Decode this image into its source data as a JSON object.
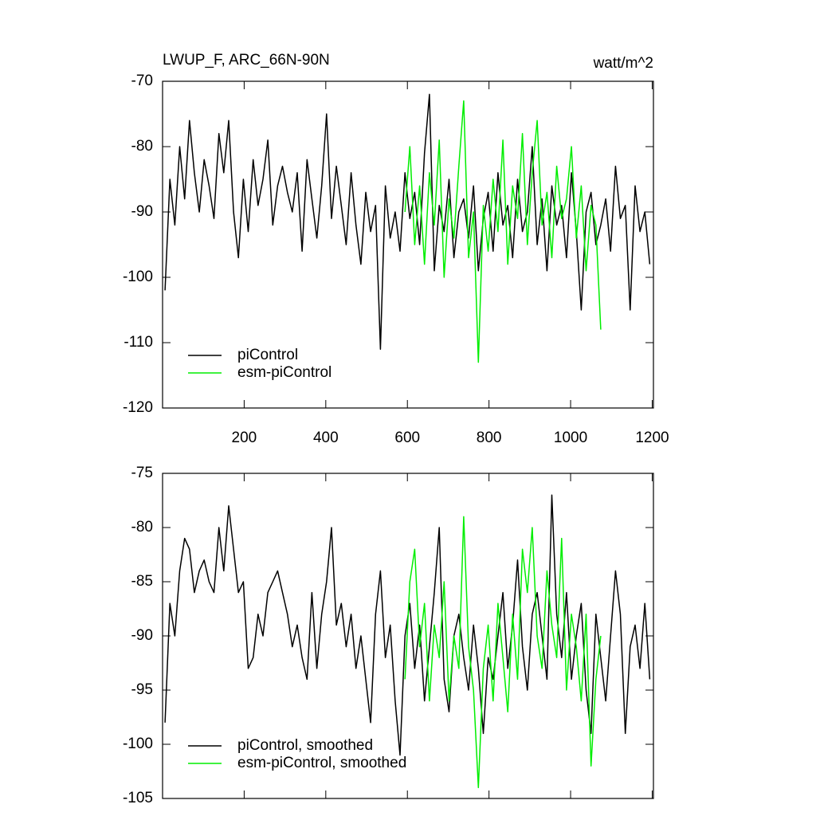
{
  "chart_data": [
    {
      "type": "line",
      "title": "LWUP_F, ARC_66N-90N",
      "units_label": "watt/m^2",
      "x": [
        6,
        18,
        30,
        42,
        54,
        66,
        78,
        90,
        102,
        114,
        126,
        138,
        150,
        162,
        174,
        186,
        198,
        210,
        222,
        234,
        246,
        258,
        270,
        282,
        294,
        306,
        318,
        330,
        342,
        354,
        366,
        378,
        390,
        402,
        414,
        426,
        438,
        450,
        462,
        474,
        486,
        498,
        510,
        522,
        534,
        546,
        558,
        570,
        582,
        594,
        606,
        618,
        630,
        642,
        654,
        666,
        678,
        690,
        702,
        714,
        726,
        738,
        750,
        762,
        774,
        786,
        798,
        810,
        822,
        834,
        846,
        858,
        870,
        882,
        894,
        906,
        918,
        930,
        942,
        954,
        966,
        978,
        990,
        1002,
        1014,
        1026,
        1038,
        1050,
        1062,
        1074,
        1086,
        1098,
        1110,
        1122,
        1134,
        1146,
        1158,
        1170,
        1182,
        1194
      ],
      "series": [
        {
          "name": "piControl",
          "color": "#000000",
          "values": [
            -102,
            -85,
            -92,
            -80,
            -88,
            -76,
            -84,
            -90,
            -82,
            -86,
            -91,
            -78,
            -84,
            -76,
            -90,
            -97,
            -85,
            -93,
            -82,
            -89,
            -85,
            -79,
            -92,
            -86,
            -83,
            -87,
            -90,
            -84,
            -96,
            -82,
            -88,
            -94,
            -86,
            -75,
            -91,
            -83,
            -89,
            -95,
            -84,
            -92,
            -98,
            -87,
            -93,
            -89,
            -111,
            -86,
            -94,
            -90,
            -96,
            -84,
            -91,
            -87,
            -95,
            -81,
            -72,
            -99,
            -89,
            -93,
            -85,
            -97,
            -90,
            -88,
            -94,
            -86,
            -99,
            -91,
            -87,
            -96,
            -84,
            -92,
            -89,
            -97,
            -85,
            -93,
            -90,
            -80,
            -95,
            -88,
            -99,
            -86,
            -92,
            -89,
            -97,
            -84,
            -93,
            -105,
            -90,
            -87,
            -95,
            -92,
            -88,
            -96,
            -83,
            -91,
            -89,
            -105,
            -86,
            -93,
            -90,
            -98
          ]
        },
        {
          "name": "esm-piControl",
          "color": "#00ee00",
          "values": [
            null,
            null,
            null,
            null,
            null,
            null,
            null,
            null,
            null,
            null,
            null,
            null,
            null,
            null,
            null,
            null,
            null,
            null,
            null,
            null,
            null,
            null,
            null,
            null,
            null,
            null,
            null,
            null,
            null,
            null,
            null,
            null,
            null,
            null,
            null,
            null,
            null,
            null,
            null,
            null,
            null,
            null,
            null,
            null,
            null,
            null,
            null,
            null,
            null,
            -90,
            -80,
            -95,
            -86,
            -98,
            -84,
            -92,
            -79,
            -100,
            -88,
            -94,
            -83,
            -73,
            -97,
            -90,
            -113,
            -89,
            -96,
            -85,
            -93,
            -79,
            -98,
            -86,
            -91,
            -78,
            -95,
            -84,
            -76,
            -92,
            -87,
            -97,
            -83,
            -91,
            -88,
            -80,
            -94,
            -86,
            -99,
            -89,
            -92,
            -108,
            null,
            null,
            null,
            null,
            null,
            null,
            null,
            null,
            null,
            null
          ]
        }
      ],
      "xlim": [
        0,
        1203
      ],
      "xticks": [
        200,
        400,
        600,
        800,
        1000,
        1200
      ],
      "xtick_labels": true,
      "ylim": [
        -120,
        -70
      ],
      "yticks": [
        -120,
        -110,
        -100,
        -90,
        -80,
        -70
      ],
      "legend": "lower left"
    },
    {
      "type": "line",
      "x": [
        6,
        18,
        30,
        42,
        54,
        66,
        78,
        90,
        102,
        114,
        126,
        138,
        150,
        162,
        174,
        186,
        198,
        210,
        222,
        234,
        246,
        258,
        270,
        282,
        294,
        306,
        318,
        330,
        342,
        354,
        366,
        378,
        390,
        402,
        414,
        426,
        438,
        450,
        462,
        474,
        486,
        498,
        510,
        522,
        534,
        546,
        558,
        570,
        582,
        594,
        606,
        618,
        630,
        642,
        654,
        666,
        678,
        690,
        702,
        714,
        726,
        738,
        750,
        762,
        774,
        786,
        798,
        810,
        822,
        834,
        846,
        858,
        870,
        882,
        894,
        906,
        918,
        930,
        942,
        954,
        966,
        978,
        990,
        1002,
        1014,
        1026,
        1038,
        1050,
        1062,
        1074,
        1086,
        1098,
        1110,
        1122,
        1134,
        1146,
        1158,
        1170,
        1182,
        1194
      ],
      "series": [
        {
          "name": "piControl, smoothed",
          "color": "#000000",
          "values": [
            -98,
            -87,
            -90,
            -84,
            -81,
            -82,
            -86,
            -84,
            -83,
            -85,
            -86,
            -80,
            -84,
            -78,
            -82,
            -86,
            -85,
            -93,
            -92,
            -88,
            -90,
            -86,
            -85,
            -84,
            -86,
            -88,
            -91,
            -89,
            -92,
            -94,
            -86,
            -93,
            -88,
            -85,
            -80,
            -89,
            -87,
            -91,
            -88,
            -93,
            -90,
            -94,
            -98,
            -88,
            -84,
            -92,
            -89,
            -96,
            -101,
            -90,
            -87,
            -93,
            -89,
            -96,
            -91,
            -86,
            -80,
            -94,
            -97,
            -90,
            -88,
            -92,
            -95,
            -89,
            -93,
            -99,
            -92,
            -94,
            -90,
            -86,
            -93,
            -89,
            -83,
            -91,
            -95,
            -88,
            -86,
            -90,
            -94,
            -77,
            -88,
            -92,
            -86,
            -94,
            -90,
            -87,
            -95,
            -99,
            -88,
            -92,
            -96,
            -90,
            -84,
            -88,
            -99,
            -91,
            -89,
            -93,
            -87,
            -94
          ]
        },
        {
          "name": "esm-piControl, smoothed",
          "color": "#00ee00",
          "values": [
            null,
            null,
            null,
            null,
            null,
            null,
            null,
            null,
            null,
            null,
            null,
            null,
            null,
            null,
            null,
            null,
            null,
            null,
            null,
            null,
            null,
            null,
            null,
            null,
            null,
            null,
            null,
            null,
            null,
            null,
            null,
            null,
            null,
            null,
            null,
            null,
            null,
            null,
            null,
            null,
            null,
            null,
            null,
            null,
            null,
            null,
            null,
            null,
            null,
            -94,
            -85,
            -82,
            -91,
            -87,
            -96,
            -89,
            -92,
            -85,
            -96,
            -90,
            -93,
            -79,
            -91,
            -95,
            -104,
            -93,
            -89,
            -96,
            -87,
            -92,
            -97,
            -88,
            -94,
            -82,
            -86,
            -80,
            -90,
            -93,
            -84,
            -89,
            -92,
            -81,
            -95,
            -88,
            -91,
            -96,
            -88,
            -102,
            -94,
            -90,
            null,
            null,
            null,
            null,
            null,
            null,
            null,
            null,
            null,
            null
          ]
        }
      ],
      "xlim": [
        0,
        1203
      ],
      "xticks": [
        200,
        400,
        600,
        800,
        1000,
        1200
      ],
      "xtick_labels": false,
      "ylim": [
        -105,
        -75
      ],
      "yticks": [
        -105,
        -100,
        -95,
        -90,
        -85,
        -80,
        -75
      ],
      "legend": "lower left"
    }
  ]
}
